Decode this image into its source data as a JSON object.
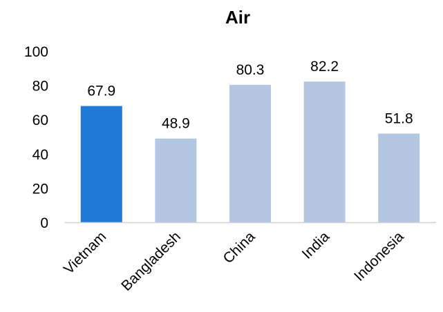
{
  "chart_data": {
    "type": "bar",
    "title": "Air",
    "categories": [
      "Vietnam",
      "Bangladesh",
      "China",
      "India",
      "Indonesia"
    ],
    "values": [
      67.9,
      48.9,
      80.3,
      82.2,
      51.8
    ],
    "ylim": [
      0,
      100
    ],
    "yticks": [
      0,
      20,
      40,
      60,
      80,
      100
    ],
    "grid": false,
    "legend": "none",
    "colors": {
      "highlight": "#1f7ad6",
      "default": "#b4c7e2",
      "axis": "#d0d0d0"
    },
    "highlight_index": 0
  }
}
